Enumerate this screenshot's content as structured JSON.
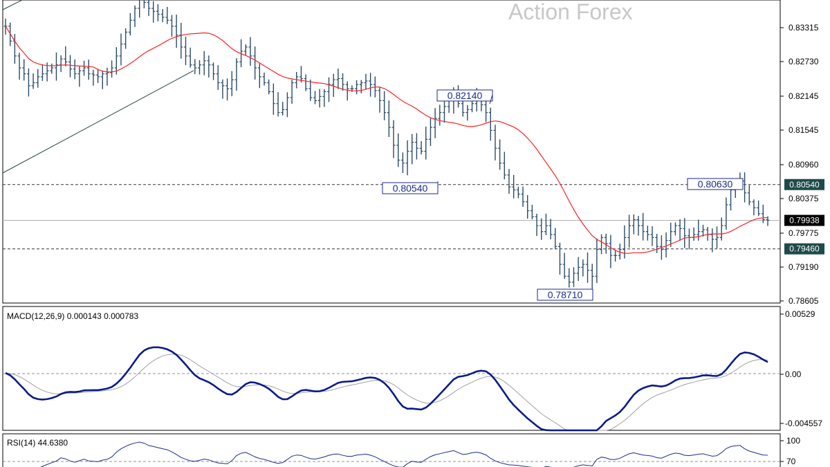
{
  "chart_data": [
    {
      "type": "bar",
      "style": "ohlc",
      "watermark": "Action Forex",
      "y_ticks": [
        "0.83315",
        "0.82730",
        "0.82145",
        "0.81545",
        "0.80960",
        "0.80375",
        "0.79775",
        "0.79190",
        "0.78605"
      ],
      "ylim": [
        0.7855,
        0.8364
      ],
      "current_price": "0.79938",
      "levels": [
        {
          "label": "0.80540",
          "value": 0.8054,
          "style": "dashed"
        },
        {
          "label": "0.79460",
          "value": 0.7946,
          "style": "dashed"
        }
      ],
      "annotations": [
        {
          "label": "0.82140",
          "value": 0.8214
        },
        {
          "label": "0.80540",
          "value": 0.8054
        },
        {
          "label": "0.78710",
          "value": 0.7871
        },
        {
          "label": "0.80630",
          "value": 0.8063
        }
      ],
      "colors": {
        "bars": "#2a4a66",
        "moving_average": "#ff2020",
        "channel": "#2a4a3a",
        "annotation": "#1a2a8a",
        "current_price": "#000000"
      },
      "closes": [
        0.832,
        0.8295,
        0.827,
        0.825,
        0.824,
        0.822,
        0.8225,
        0.8235,
        0.824,
        0.8245,
        0.825,
        0.8255,
        0.8265,
        0.826,
        0.8248,
        0.824,
        0.8245,
        0.825,
        0.824,
        0.8238,
        0.8235,
        0.824,
        0.8242,
        0.825,
        0.827,
        0.829,
        0.831,
        0.833,
        0.835,
        0.8365,
        0.836,
        0.835,
        0.8345,
        0.834,
        0.8335,
        0.833,
        0.832,
        0.8305,
        0.8285,
        0.827,
        0.8255,
        0.825,
        0.8255,
        0.8262,
        0.8255,
        0.824,
        0.8225,
        0.822,
        0.8215,
        0.823,
        0.826,
        0.8278,
        0.8285,
        0.827,
        0.825,
        0.8235,
        0.8225,
        0.821,
        0.819,
        0.8175,
        0.818,
        0.82,
        0.8225,
        0.8235,
        0.8232,
        0.8215,
        0.82,
        0.8195,
        0.8202,
        0.821,
        0.8222,
        0.823,
        0.8232,
        0.8222,
        0.8215,
        0.8215,
        0.8222,
        0.8225,
        0.8228,
        0.8222,
        0.8212,
        0.8195,
        0.8175,
        0.815,
        0.812,
        0.8095,
        0.809,
        0.811,
        0.8125,
        0.8115,
        0.811,
        0.813,
        0.815,
        0.8165,
        0.8175,
        0.8185,
        0.8195,
        0.8205,
        0.819,
        0.8175,
        0.818,
        0.819,
        0.8195,
        0.8188,
        0.8175,
        0.8145,
        0.8115,
        0.809,
        0.807,
        0.805,
        0.8045,
        0.8038,
        0.8025,
        0.801,
        0.8,
        0.7985,
        0.7975,
        0.7985,
        0.797,
        0.795,
        0.792,
        0.79,
        0.789,
        0.7905,
        0.7915,
        0.792,
        0.791,
        0.79,
        0.7945,
        0.7965,
        0.7955,
        0.7935,
        0.7935,
        0.7945,
        0.7965,
        0.7985,
        0.7995,
        0.7985,
        0.7975,
        0.797,
        0.7965,
        0.795,
        0.7945,
        0.796,
        0.7975,
        0.7985,
        0.798,
        0.7968,
        0.7965,
        0.797,
        0.7975,
        0.7978,
        0.797,
        0.7962,
        0.7965,
        0.7985,
        0.802,
        0.8045,
        0.8055,
        0.806,
        0.804,
        0.8025,
        0.8015,
        0.8005,
        0.7995,
        0.7994
      ]
    },
    {
      "type": "line",
      "indicator": "MACD",
      "label": "MACD(12,26,9) 0.000143 0.000783",
      "y_ticks": [
        "0.00529",
        "0.00",
        "-0.004557"
      ],
      "ylim": [
        -0.005,
        0.0058
      ],
      "colors": {
        "macd": "#0a1a8a",
        "signal": "#a0a0a0",
        "zero": "#909090"
      }
    },
    {
      "type": "line",
      "indicator": "RSI",
      "label": "RSI(14) 44.6380",
      "y_ticks": [
        "100",
        "70"
      ],
      "ylim": [
        0,
        100
      ],
      "colors": {
        "rsi": "#1a2a8a",
        "level": "#909090"
      }
    }
  ]
}
